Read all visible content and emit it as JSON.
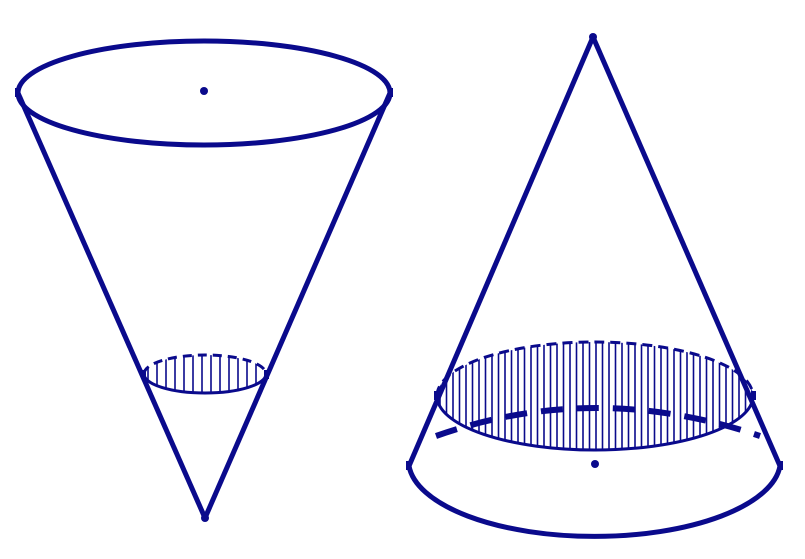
{
  "diagram": {
    "description_visible_text": "",
    "stroke_color": "#0a0a8c",
    "fill_color": "#ffffff",
    "figures": [
      {
        "name": "inverted-cone",
        "liquid": "water-surface-circle",
        "pattern": "vertical-hatch"
      },
      {
        "name": "upright-cone",
        "liquid": "water-surface-circle",
        "pattern": "vertical-hatch"
      }
    ]
  }
}
